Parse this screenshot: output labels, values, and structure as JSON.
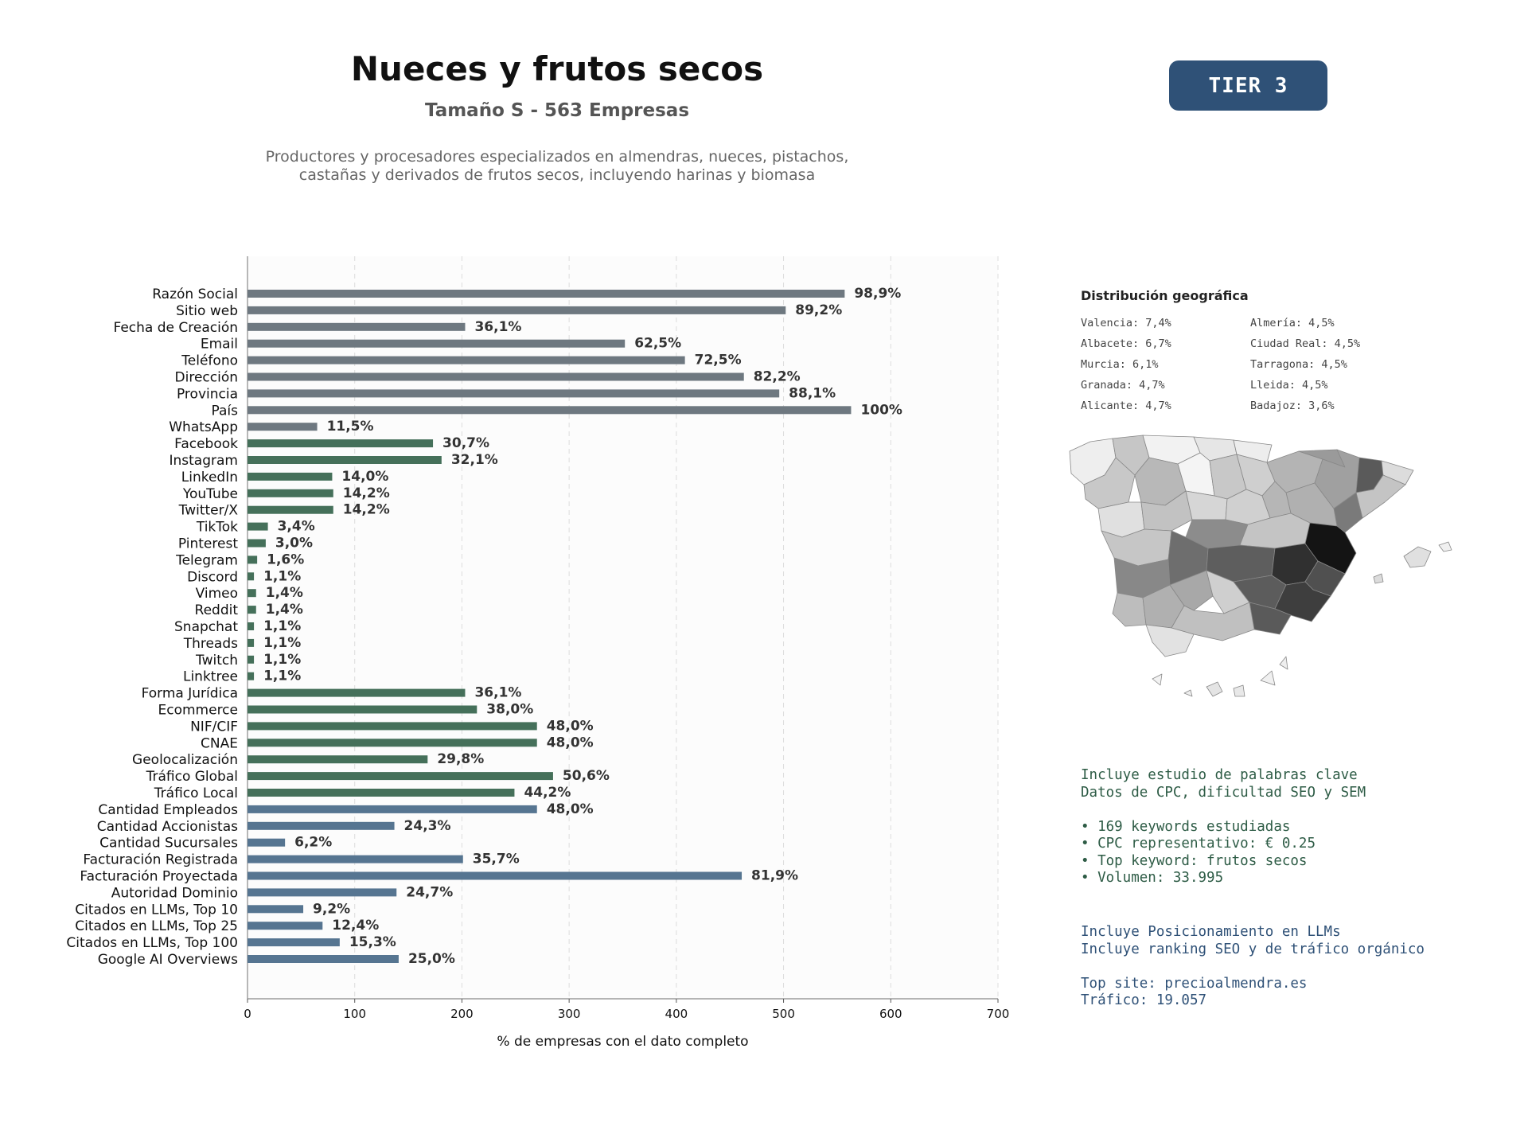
{
  "header": {
    "title": "Nueces y frutos secos",
    "subtitle": "Tamaño S - 563 Empresas",
    "description": "Productores y procesadores especializados en almendras, nueces, pistachos, castañas y derivados de frutos secos, incluyendo harinas y biomasa",
    "tier": "TIER 3"
  },
  "colors": {
    "basic": "#6e7880",
    "social": "#45705a",
    "business": "#567591",
    "tier_badge": "#2f5177",
    "info_green": "#2e5c46",
    "info_blue": "#2f5177"
  },
  "chart_data": {
    "type": "bar",
    "orientation": "horizontal",
    "xlabel": "% de empresas con el dato completo",
    "xlim": [
      0,
      700
    ],
    "xticks": [
      "0",
      "100",
      "200",
      "300",
      "400",
      "500",
      "600",
      "700"
    ],
    "grid": "vertical dashed",
    "categories": [
      "Razón Social",
      "Sitio web",
      "Fecha de Creación",
      "Email",
      "Teléfono",
      "Dirección",
      "Provincia",
      "País",
      "WhatsApp",
      "Facebook",
      "Instagram",
      "LinkedIn",
      "YouTube",
      "Twitter/X",
      "TikTok",
      "Pinterest",
      "Telegram",
      "Discord",
      "Vimeo",
      "Reddit",
      "Snapchat",
      "Threads",
      "Twitch",
      "Linktree",
      "Forma Jurídica",
      "Ecommerce",
      "NIF/CIF",
      "CNAE",
      "Geolocalización",
      "Tráfico Global",
      "Tráfico Local",
      "Cantidad Empleados",
      "Cantidad Accionistas",
      "Cantidad Sucursales",
      "Facturación Registrada",
      "Facturación Proyectada",
      "Autoridad Dominio",
      "Citados en LLMs, Top 10",
      "Citados en LLMs, Top 25",
      "Citados en LLMs, Top 100",
      "Google AI Overviews"
    ],
    "values": [
      557,
      502,
      203,
      352,
      408,
      463,
      496,
      563,
      65,
      173,
      181,
      79,
      80,
      80,
      19,
      17,
      9,
      6,
      8,
      8,
      6,
      6,
      6,
      6,
      203,
      214,
      270,
      270,
      168,
      285,
      249,
      270,
      137,
      35,
      201,
      461,
      139,
      52,
      70,
      86,
      141
    ],
    "labels": [
      "98,9%",
      "89,2%",
      "36,1%",
      "62,5%",
      "72,5%",
      "82,2%",
      "88,1%",
      "100%",
      "11,5%",
      "30,7%",
      "32,1%",
      "14,0%",
      "14,2%",
      "14,2%",
      "3,4%",
      "3,0%",
      "1,6%",
      "1,1%",
      "1,4%",
      "1,4%",
      "1,1%",
      "1,1%",
      "1,1%",
      "1,1%",
      "36,1%",
      "38,0%",
      "48,0%",
      "48,0%",
      "29,8%",
      "50,6%",
      "44,2%",
      "48,0%",
      "24,3%",
      "6,2%",
      "35,7%",
      "81,9%",
      "24,7%",
      "9,2%",
      "12,4%",
      "15,3%",
      "25,0%"
    ],
    "groups": [
      "basic",
      "basic",
      "basic",
      "basic",
      "basic",
      "basic",
      "basic",
      "basic",
      "basic",
      "social",
      "social",
      "social",
      "social",
      "social",
      "social",
      "social",
      "social",
      "social",
      "social",
      "social",
      "social",
      "social",
      "social",
      "social",
      "social",
      "social",
      "social",
      "social",
      "social",
      "social",
      "social",
      "business",
      "business",
      "business",
      "business",
      "business",
      "business",
      "business",
      "business",
      "business",
      "business"
    ]
  },
  "geo": {
    "title": "Distribución geográfica",
    "col1": [
      "Valencia: 7,4%",
      "Albacete: 6,7%",
      "Murcia: 6,1%",
      "Granada: 4,7%",
      "Alicante: 4,7%"
    ],
    "col2": [
      "Almería: 4,5%",
      "Ciudad Real: 4,5%",
      "Tarragona: 4,5%",
      "Lleida: 4,5%",
      "Badajoz: 3,6%"
    ]
  },
  "seo": {
    "line1": "Incluye estudio de palabras clave",
    "line2": "Datos de CPC, dificultad SEO y SEM",
    "bullets": [
      "• 169 keywords estudiadas",
      "• CPC representativo: € 0.25",
      "• Top keyword: frutos secos",
      "• Volumen: 33.995"
    ]
  },
  "llm": {
    "line1": "Incluye Posicionamiento en LLMs",
    "line2": "Incluye ranking SEO y de tráfico orgánico",
    "top_site": "Top site: precioalmendra.es",
    "traffic": "Tráfico: 19.057"
  }
}
